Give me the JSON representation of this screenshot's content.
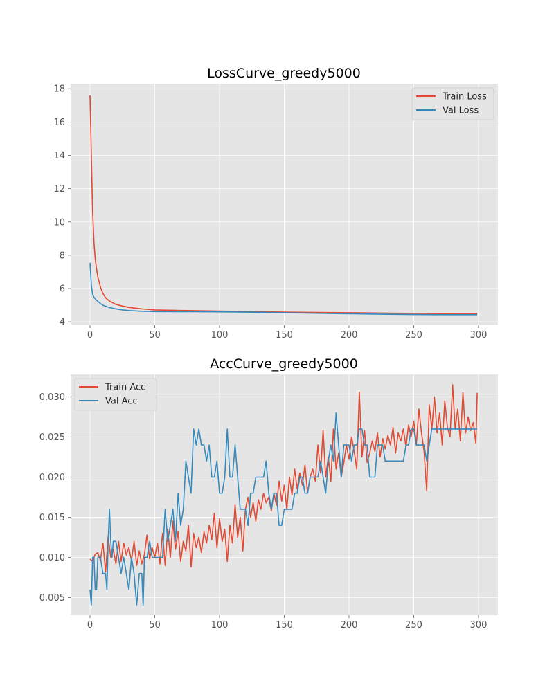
{
  "chart_data": [
    {
      "type": "line",
      "title": "LossCurve_greedy5000",
      "xlabel": "",
      "ylabel": "",
      "xlim": [
        -15,
        315
      ],
      "ylim": [
        3.8,
        18.3
      ],
      "xticks": [
        0,
        50,
        100,
        150,
        200,
        250,
        300
      ],
      "yticks": [
        4,
        6,
        8,
        10,
        12,
        14,
        16,
        18
      ],
      "grid": true,
      "legend_position": "upper-right",
      "series": [
        {
          "name": "Train Loss",
          "color": "#e24a33",
          "x": [
            0,
            1,
            2,
            3,
            4,
            5,
            6,
            8,
            10,
            12,
            15,
            20,
            25,
            30,
            40,
            50,
            60,
            75,
            100,
            125,
            150,
            175,
            200,
            225,
            250,
            275,
            299
          ],
          "y": [
            17.6,
            14.0,
            10.6,
            8.8,
            7.8,
            7.2,
            6.7,
            6.1,
            5.7,
            5.45,
            5.25,
            5.05,
            4.95,
            4.87,
            4.78,
            4.72,
            4.7,
            4.68,
            4.65,
            4.62,
            4.59,
            4.57,
            4.55,
            4.53,
            4.51,
            4.5,
            4.5
          ]
        },
        {
          "name": "Val Loss",
          "color": "#348abd",
          "x": [
            0,
            1,
            2,
            3,
            5,
            8,
            10,
            15,
            20,
            25,
            30,
            40,
            50,
            75,
            100,
            125,
            150,
            175,
            200,
            225,
            250,
            275,
            299
          ],
          "y": [
            7.55,
            6.2,
            5.65,
            5.48,
            5.3,
            5.1,
            5.0,
            4.86,
            4.78,
            4.72,
            4.68,
            4.64,
            4.62,
            4.61,
            4.6,
            4.58,
            4.55,
            4.52,
            4.49,
            4.46,
            4.44,
            4.43,
            4.43
          ]
        }
      ]
    },
    {
      "type": "line",
      "title": "AccCurve_greedy5000",
      "xlabel": "",
      "ylabel": "",
      "xlim": [
        -15,
        315
      ],
      "ylim": [
        0.0028,
        0.0328
      ],
      "xticks": [
        0,
        50,
        100,
        150,
        200,
        250,
        300
      ],
      "yticks": [
        0.005,
        0.01,
        0.015,
        0.02,
        0.025,
        0.03
      ],
      "ytick_labels": [
        "0.005",
        "0.010",
        "0.015",
        "0.020",
        "0.025",
        "0.030"
      ],
      "grid": true,
      "legend_position": "upper-left",
      "series": [
        {
          "name": "Train Acc",
          "color": "#e24a33",
          "x": [
            0,
            2,
            4,
            6,
            8,
            10,
            12,
            14,
            16,
            18,
            20,
            22,
            24,
            26,
            28,
            30,
            32,
            34,
            36,
            38,
            40,
            42,
            44,
            46,
            48,
            50,
            52,
            54,
            56,
            58,
            60,
            62,
            64,
            66,
            68,
            70,
            72,
            74,
            76,
            78,
            80,
            82,
            84,
            86,
            88,
            90,
            92,
            94,
            96,
            98,
            100,
            102,
            104,
            106,
            108,
            110,
            112,
            114,
            116,
            118,
            120,
            122,
            124,
            126,
            128,
            130,
            132,
            134,
            136,
            138,
            140,
            142,
            144,
            146,
            148,
            150,
            152,
            154,
            156,
            158,
            160,
            162,
            164,
            166,
            168,
            170,
            172,
            174,
            176,
            178,
            180,
            182,
            184,
            186,
            188,
            190,
            192,
            194,
            196,
            198,
            200,
            202,
            204,
            206,
            208,
            210,
            212,
            214,
            216,
            218,
            220,
            222,
            224,
            226,
            228,
            230,
            232,
            234,
            236,
            238,
            240,
            242,
            244,
            246,
            248,
            250,
            252,
            254,
            256,
            258,
            260,
            262,
            264,
            266,
            268,
            270,
            272,
            274,
            276,
            278,
            280,
            282,
            284,
            286,
            288,
            290,
            292,
            294,
            296,
            298,
            299
          ],
          "y": [
            0.0098,
            0.0095,
            0.0104,
            0.0106,
            0.0096,
            0.0118,
            0.0082,
            0.0126,
            0.01,
            0.011,
            0.0092,
            0.012,
            0.0095,
            0.0118,
            0.0103,
            0.0112,
            0.0096,
            0.012,
            0.009,
            0.0108,
            0.0092,
            0.0104,
            0.0128,
            0.0098,
            0.0112,
            0.01,
            0.0118,
            0.0092,
            0.013,
            0.009,
            0.0135,
            0.01,
            0.0145,
            0.011,
            0.0132,
            0.0095,
            0.012,
            0.0108,
            0.014,
            0.0088,
            0.013,
            0.0112,
            0.0125,
            0.0106,
            0.0132,
            0.0118,
            0.014,
            0.0122,
            0.0155,
            0.0112,
            0.0148,
            0.012,
            0.0135,
            0.0095,
            0.014,
            0.0118,
            0.0165,
            0.0125,
            0.015,
            0.0108,
            0.016,
            0.0175,
            0.015,
            0.0168,
            0.0145,
            0.0172,
            0.016,
            0.018,
            0.0168,
            0.0175,
            0.0158,
            0.018,
            0.0165,
            0.0195,
            0.017,
            0.019,
            0.016,
            0.02,
            0.0178,
            0.021,
            0.0185,
            0.0205,
            0.019,
            0.0215,
            0.018,
            0.02,
            0.021,
            0.0195,
            0.024,
            0.0205,
            0.0258,
            0.02,
            0.0225,
            0.0195,
            0.026,
            0.021,
            0.023,
            0.02,
            0.0218,
            0.024,
            0.0222,
            0.025,
            0.0232,
            0.021,
            0.0306,
            0.0225,
            0.0258,
            0.0218,
            0.023,
            0.0245,
            0.0232,
            0.0255,
            0.0225,
            0.0248,
            0.0235,
            0.0252,
            0.024,
            0.0262,
            0.023,
            0.0255,
            0.0245,
            0.026,
            0.0238,
            0.0265,
            0.025,
            0.027,
            0.024,
            0.0285,
            0.0255,
            0.0232,
            0.0183,
            0.029,
            0.026,
            0.03,
            0.0255,
            0.028,
            0.024,
            0.0295,
            0.0262,
            0.025,
            0.0315,
            0.026,
            0.0285,
            0.0245,
            0.0305,
            0.0255,
            0.0275,
            0.0258,
            0.0268,
            0.0242,
            0.0305
          ]
        },
        {
          "name": "Val Acc",
          "color": "#348abd",
          "x": [
            0,
            1,
            2,
            3,
            4,
            5,
            6,
            8,
            10,
            12,
            13,
            14,
            15,
            16,
            17,
            18,
            20,
            22,
            24,
            26,
            28,
            30,
            32,
            34,
            36,
            38,
            40,
            41,
            42,
            44,
            46,
            48,
            50,
            52,
            54,
            56,
            58,
            60,
            62,
            64,
            66,
            68,
            70,
            72,
            74,
            76,
            78,
            80,
            82,
            84,
            86,
            88,
            90,
            92,
            94,
            96,
            98,
            100,
            102,
            104,
            106,
            108,
            110,
            112,
            114,
            116,
            118,
            120,
            122,
            124,
            126,
            128,
            130,
            132,
            134,
            136,
            138,
            140,
            142,
            144,
            146,
            148,
            150,
            152,
            154,
            156,
            158,
            160,
            162,
            164,
            166,
            168,
            170,
            172,
            174,
            176,
            178,
            180,
            182,
            184,
            186,
            188,
            190,
            192,
            194,
            196,
            198,
            200,
            202,
            204,
            206,
            208,
            210,
            212,
            214,
            216,
            218,
            220,
            222,
            224,
            226,
            228,
            230,
            232,
            234,
            236,
            238,
            240,
            242,
            244,
            246,
            248,
            250,
            252,
            254,
            256,
            258,
            260,
            262,
            264,
            266,
            268,
            270,
            272,
            274,
            276,
            278,
            280,
            282,
            284,
            286,
            288,
            290,
            292,
            294,
            296,
            299
          ],
          "y": [
            0.006,
            0.004,
            0.01,
            0.01,
            0.006,
            0.006,
            0.01,
            0.01,
            0.008,
            0.008,
            0.006,
            0.012,
            0.016,
            0.012,
            0.01,
            0.012,
            0.012,
            0.01,
            0.008,
            0.01,
            0.008,
            0.006,
            0.01,
            0.008,
            0.004,
            0.008,
            0.008,
            0.004,
            0.01,
            0.01,
            0.012,
            0.01,
            0.01,
            0.01,
            0.01,
            0.01,
            0.016,
            0.012,
            0.014,
            0.016,
            0.012,
            0.018,
            0.014,
            0.016,
            0.022,
            0.02,
            0.018,
            0.026,
            0.024,
            0.026,
            0.024,
            0.024,
            0.022,
            0.024,
            0.02,
            0.02,
            0.022,
            0.018,
            0.018,
            0.02,
            0.026,
            0.02,
            0.02,
            0.024,
            0.02,
            0.016,
            0.016,
            0.016,
            0.014,
            0.018,
            0.018,
            0.02,
            0.02,
            0.02,
            0.02,
            0.022,
            0.018,
            0.016,
            0.018,
            0.018,
            0.014,
            0.014,
            0.016,
            0.016,
            0.016,
            0.016,
            0.018,
            0.018,
            0.02,
            0.02,
            0.018,
            0.018,
            0.02,
            0.02,
            0.02,
            0.02,
            0.022,
            0.02,
            0.018,
            0.022,
            0.024,
            0.022,
            0.028,
            0.024,
            0.02,
            0.024,
            0.024,
            0.024,
            0.022,
            0.024,
            0.024,
            0.026,
            0.026,
            0.024,
            0.024,
            0.02,
            0.02,
            0.02,
            0.024,
            0.024,
            0.024,
            0.022,
            0.022,
            0.022,
            0.022,
            0.022,
            0.022,
            0.022,
            0.022,
            0.024,
            0.024,
            0.026,
            0.026,
            0.024,
            0.024,
            0.024,
            0.024,
            0.022,
            0.024,
            0.026,
            0.026,
            0.026,
            0.026,
            0.026,
            0.026,
            0.026,
            0.026,
            0.026,
            0.026,
            0.026,
            0.026,
            0.026,
            0.026,
            0.026,
            0.026,
            0.026,
            0.026
          ]
        }
      ]
    }
  ]
}
